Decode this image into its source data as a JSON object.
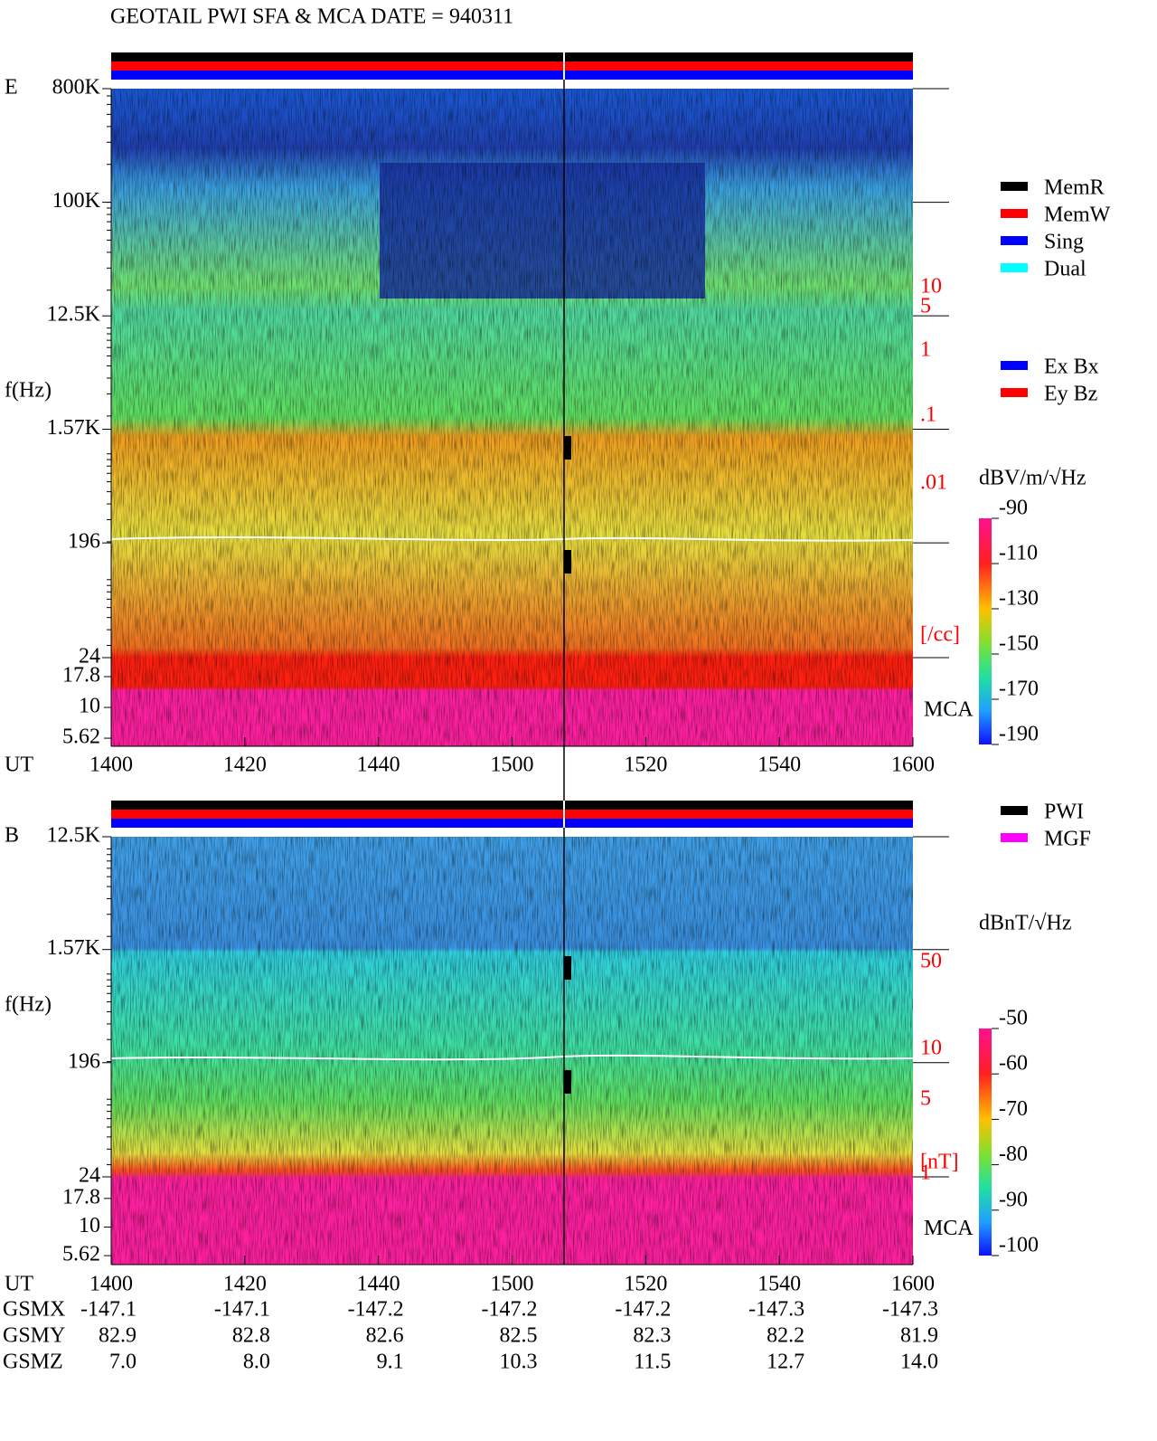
{
  "title": "GEOTAIL  PWI SFA & MCA   DATE = 940311",
  "ut_label": "UT",
  "xticks": [
    "1400",
    "1420",
    "1440",
    "1500",
    "1520",
    "1540",
    "1600"
  ],
  "panels": [
    {
      "label": "E",
      "ylabel": "f(Hz)",
      "log_scale": true,
      "ylim": [
        24,
        800000
      ],
      "yticks": [
        {
          "value": 800000,
          "label": "800K"
        },
        {
          "value": 100000,
          "label": "100K"
        },
        {
          "value": 12500,
          "label": "12.5K"
        },
        {
          "value": 1570,
          "label": "1.57K"
        },
        196,
        24
      ],
      "mca_label": "MCA",
      "mca_ylim": [
        4.83,
        25.4
      ],
      "mca_ticks": [
        17.8,
        10,
        5.62
      ],
      "side_scale": [
        "10",
        "5",
        "1",
        ".1",
        ".01",
        "[/cc]"
      ],
      "colorbar": {
        "unit": "dBV/m/√Hz",
        "lim": [
          -90,
          -190
        ],
        "ticks": [
          -90,
          -110,
          -130,
          -150,
          -170,
          -190
        ]
      },
      "legends": [
        [
          {
            "name": "MemR",
            "color": "#000000"
          },
          {
            "name": "MemW",
            "color": "#ff0000"
          },
          {
            "name": "Sing",
            "color": "#0000ff"
          },
          {
            "name": "Dual",
            "color": "#00ffff"
          }
        ],
        [
          {
            "name": "Ex Bx",
            "color": "#0000ff"
          },
          {
            "name": "Ey Bz",
            "color": "#ff0000"
          }
        ]
      ]
    },
    {
      "label": "B",
      "ylabel": "f(Hz)",
      "log_scale": true,
      "ylim": [
        24,
        12500
      ],
      "yticks": [
        {
          "value": 12500,
          "label": "12.5K"
        },
        {
          "value": 1570,
          "label": "1.57K"
        },
        196,
        24
      ],
      "mca_label": "MCA",
      "mca_ylim": [
        4.69,
        27.5
      ],
      "mca_ticks": [
        17.8,
        10,
        5.62
      ],
      "side_scale": [
        "50",
        "10",
        "5",
        "1",
        "[nT]"
      ],
      "colorbar": {
        "unit": "dBnT/√Hz",
        "lim": [
          -50,
          -100
        ],
        "ticks": [
          -50,
          -60,
          -70,
          -80,
          -90,
          -100
        ]
      },
      "legends": [
        [
          {
            "name": "PWI",
            "color": "#000000"
          },
          {
            "name": "MGF",
            "color": "#ff00ff"
          }
        ]
      ]
    }
  ],
  "orbit": [
    {
      "name": "GSMX",
      "values": [
        "-147.1",
        "-147.1",
        "-147.2",
        "-147.2",
        "-147.2",
        "-147.3",
        "-147.3"
      ]
    },
    {
      "name": "GSMY",
      "values": [
        "82.9",
        "82.8",
        "82.6",
        "82.5",
        "82.3",
        "82.2",
        "81.9"
      ]
    },
    {
      "name": "GSMZ",
      "values": [
        "7.0",
        "8.0",
        "9.1",
        "10.3",
        "11.5",
        "12.7",
        "14.0"
      ]
    }
  ]
}
